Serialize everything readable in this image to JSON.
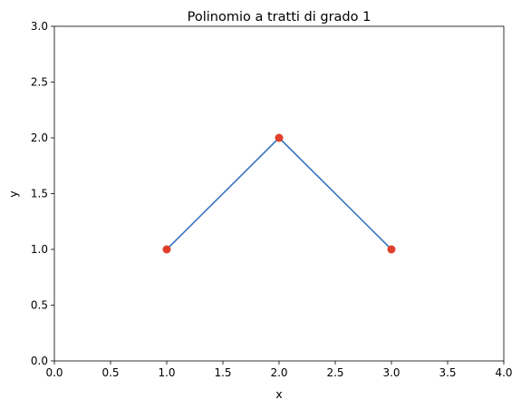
{
  "chart_data": {
    "type": "line",
    "title": "Polinomio a tratti di grado 1",
    "xlabel": "x",
    "ylabel": "y",
    "xlim": [
      0.0,
      4.0
    ],
    "ylim": [
      0.0,
      3.0
    ],
    "grid": false,
    "x_ticks": [
      "0.0",
      "0.5",
      "1.0",
      "1.5",
      "2.0",
      "2.5",
      "3.0",
      "3.5",
      "4.0"
    ],
    "y_ticks": [
      "0.0",
      "0.5",
      "1.0",
      "1.5",
      "2.0",
      "2.5",
      "3.0"
    ],
    "line": {
      "x": [
        1,
        2,
        3
      ],
      "y": [
        1,
        2,
        1
      ],
      "color": "#3b75c0"
    },
    "points": {
      "x": [
        1,
        2,
        3
      ],
      "y": [
        1,
        2,
        1
      ],
      "color": "#e0402b"
    }
  }
}
